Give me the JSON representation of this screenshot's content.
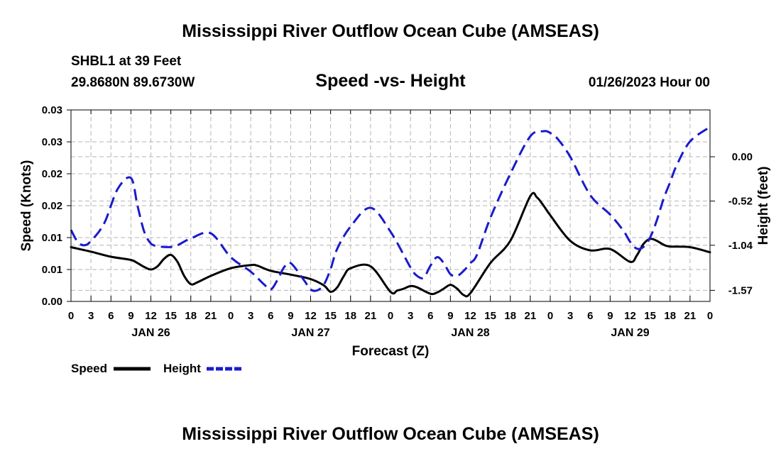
{
  "header": {
    "title": "Mississippi River Outflow Ocean Cube (AMSEAS)",
    "station": "SHBL1 at 39 Feet",
    "coords": "29.8680N  89.6730W",
    "subtitle": "Speed -vs- Height",
    "datetime": "01/26/2023 Hour 00"
  },
  "footer": {
    "title": "Mississippi River Outflow Ocean Cube (AMSEAS)"
  },
  "colors": {
    "speed": "#000000",
    "height": "#1a1acc",
    "grid": "#b4b4b4"
  },
  "chart_data": {
    "type": "line",
    "title": "Speed -vs- Height",
    "xlabel": "Forecast (Z)",
    "ylabel": "Speed (Knots)",
    "y2label": "Height (feet)",
    "x_range_hours": [
      0,
      96
    ],
    "xtick_hours": [
      0,
      3,
      6,
      9,
      12,
      15,
      18,
      21,
      24,
      27,
      30,
      33,
      36,
      39,
      42,
      45,
      48,
      51,
      54,
      57,
      60,
      63,
      66,
      69,
      72,
      75,
      78,
      81,
      84,
      87,
      90,
      93,
      96
    ],
    "xtick_labels": [
      "0",
      "3",
      "6",
      "9",
      "12",
      "15",
      "18",
      "21",
      "0",
      "3",
      "6",
      "9",
      "12",
      "15",
      "18",
      "21",
      "0",
      "3",
      "6",
      "9",
      "12",
      "15",
      "18",
      "21",
      "0",
      "3",
      "6",
      "9",
      "12",
      "15",
      "18",
      "21",
      "0"
    ],
    "day_labels": [
      {
        "hour": 12,
        "label": "JAN 26"
      },
      {
        "hour": 36,
        "label": "JAN 27"
      },
      {
        "hour": 60,
        "label": "JAN 28"
      },
      {
        "hour": 84,
        "label": "JAN 29"
      }
    ],
    "y_left": {
      "range": [
        0,
        0.03
      ],
      "ticks": [
        0,
        0.005,
        0.01,
        0.015,
        0.02,
        0.025,
        0.03
      ],
      "tick_labels": [
        "0.00",
        "0.01",
        "0.01",
        "0.02",
        "0.02",
        "0.03",
        "0.03"
      ]
    },
    "y_right": {
      "range": [
        -1.7,
        0.55
      ],
      "ticks": [
        0.0,
        -0.52,
        -1.04,
        -1.57
      ],
      "tick_labels": [
        "0.00",
        "-0.52",
        "-1.04",
        "-1.57"
      ]
    },
    "legend": [
      {
        "name": "Speed",
        "style": "solid"
      },
      {
        "name": "Height",
        "style": "dashed"
      }
    ],
    "series": [
      {
        "name": "Speed",
        "axis": "left",
        "style": "solid",
        "x": [
          0,
          3,
          6,
          9,
          10,
          11,
          12,
          13,
          14,
          15,
          16,
          17,
          18,
          19,
          21,
          24,
          27,
          28,
          30,
          33,
          36,
          38,
          39,
          40,
          41,
          42,
          45,
          48,
          49,
          50,
          51,
          52,
          54,
          55,
          56,
          57,
          58,
          59,
          60,
          63,
          66,
          69,
          70,
          71,
          72,
          75,
          78,
          81,
          84,
          85,
          86,
          87,
          88,
          89,
          90,
          93,
          96
        ],
        "y": [
          0.0085,
          0.0078,
          0.007,
          0.0065,
          0.006,
          0.0054,
          0.005,
          0.0055,
          0.0067,
          0.0073,
          0.0062,
          0.004,
          0.0027,
          0.003,
          0.004,
          0.0052,
          0.0057,
          0.0056,
          0.0048,
          0.0042,
          0.0035,
          0.0025,
          0.0015,
          0.0022,
          0.004,
          0.0052,
          0.0055,
          0.0015,
          0.0017,
          0.002,
          0.0024,
          0.0022,
          0.0012,
          0.0014,
          0.002,
          0.0026,
          0.002,
          0.001,
          0.0013,
          0.006,
          0.0095,
          0.0165,
          0.0163,
          0.015,
          0.0135,
          0.0095,
          0.008,
          0.0082,
          0.0062,
          0.0072,
          0.009,
          0.0098,
          0.0095,
          0.0089,
          0.0086,
          0.0085,
          0.0077
        ]
      },
      {
        "name": "Height",
        "axis": "right",
        "style": "dashed",
        "x": [
          0,
          1,
          2,
          3,
          5,
          7,
          9,
          10,
          11,
          12,
          13,
          14,
          15,
          16,
          18,
          21,
          24,
          27,
          29,
          30,
          31,
          32,
          33,
          35,
          36,
          37,
          38,
          39,
          40,
          42,
          45,
          48,
          51,
          52,
          53,
          54,
          55,
          56,
          57,
          58,
          59,
          60,
          61,
          63,
          66,
          69,
          71,
          72,
          73,
          75,
          78,
          81,
          83,
          84,
          85,
          86,
          87,
          88,
          89,
          90,
          91,
          93,
          96
        ],
        "y": [
          -0.86,
          -1.0,
          -1.04,
          -0.99,
          -0.78,
          -0.38,
          -0.25,
          -0.58,
          -0.88,
          -1.02,
          -1.05,
          -1.06,
          -1.06,
          -1.04,
          -0.96,
          -0.9,
          -1.18,
          -1.35,
          -1.5,
          -1.56,
          -1.45,
          -1.3,
          -1.25,
          -1.45,
          -1.56,
          -1.57,
          -1.5,
          -1.32,
          -1.08,
          -0.82,
          -0.6,
          -0.88,
          -1.3,
          -1.4,
          -1.42,
          -1.28,
          -1.18,
          -1.25,
          -1.38,
          -1.4,
          -1.34,
          -1.25,
          -1.15,
          -0.72,
          -0.2,
          0.24,
          0.3,
          0.28,
          0.22,
          0.0,
          -0.45,
          -0.68,
          -0.87,
          -1.0,
          -1.08,
          -1.06,
          -0.95,
          -0.75,
          -0.5,
          -0.3,
          -0.1,
          0.18,
          0.35
        ]
      }
    ]
  }
}
